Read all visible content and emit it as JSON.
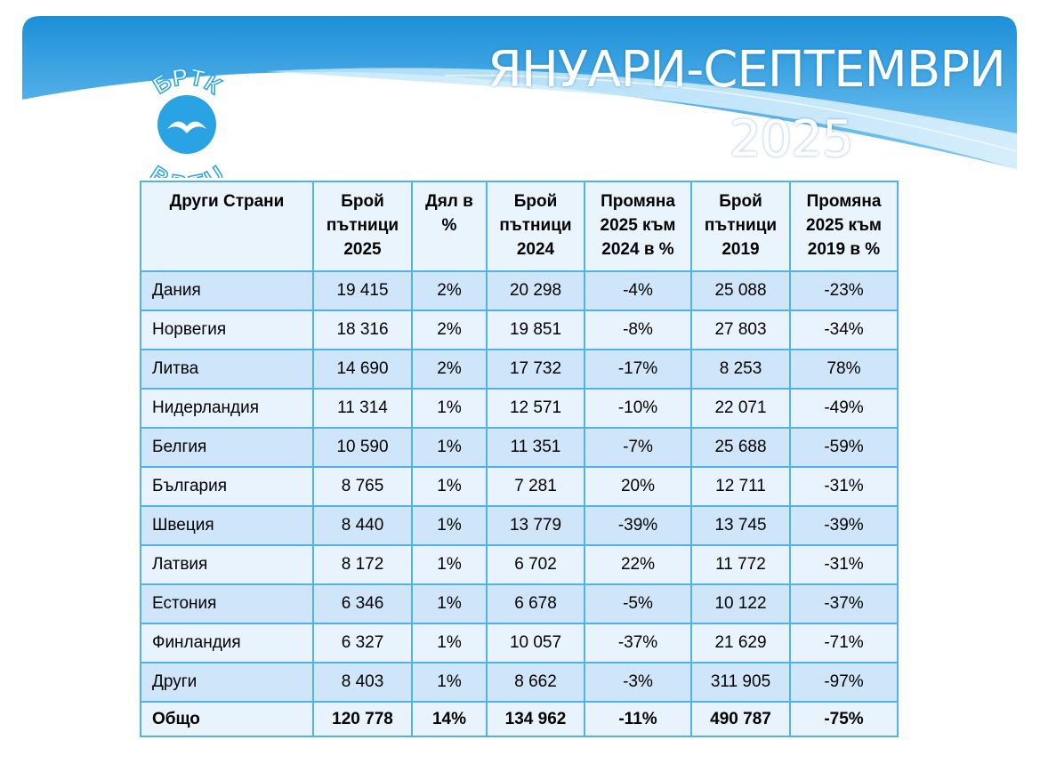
{
  "header": {
    "title_line1": "ЯНУАРИ-СЕПТЕМВРИ",
    "title_line2": "2025",
    "logo_top": "БРТК",
    "logo_bottom": "BRTU"
  },
  "table": {
    "columns": [
      "Други Страни",
      "Брой пътници 2025",
      "Дял в %",
      "Брой пътници 2024",
      "Промяна 2025 към 2024 в %",
      "Брой пътници 2019",
      "Промяна 2025 към 2019 в %"
    ],
    "rows": [
      [
        "Дания",
        "19 415",
        "2%",
        "20 298",
        "-4%",
        "25 088",
        "-23%"
      ],
      [
        "Норвегия",
        "18 316",
        "2%",
        "19 851",
        "-8%",
        "27 803",
        "-34%"
      ],
      [
        "Литва",
        "14 690",
        "2%",
        "17 732",
        "-17%",
        "8 253",
        "78%"
      ],
      [
        "Нидерландия",
        "11 314",
        "1%",
        "12 571",
        "-10%",
        "22 071",
        "-49%"
      ],
      [
        "Белгия",
        "10 590",
        "1%",
        "11 351",
        "-7%",
        "25 688",
        "-59%"
      ],
      [
        "България",
        "8 765",
        "1%",
        "7 281",
        "20%",
        "12 711",
        "-31%"
      ],
      [
        "Швеция",
        "8 440",
        "1%",
        "13 779",
        "-39%",
        "13 745",
        "-39%"
      ],
      [
        "Латвия",
        "8 172",
        "1%",
        "6 702",
        "22%",
        "11 772",
        "-31%"
      ],
      [
        "Естония",
        "6 346",
        "1%",
        "6 678",
        "-5%",
        "10 122",
        "-37%"
      ],
      [
        "Финландия",
        "6 327",
        "1%",
        "10 057",
        "-37%",
        "21 629",
        "-71%"
      ],
      [
        "Други",
        "8 403",
        "1%",
        "8 662",
        "-3%",
        "311 905",
        "-97%"
      ]
    ],
    "total": [
      "Общо",
      "120 778",
      "14%",
      "134 962",
      "-11%",
      "490 787",
      "-75%"
    ]
  }
}
